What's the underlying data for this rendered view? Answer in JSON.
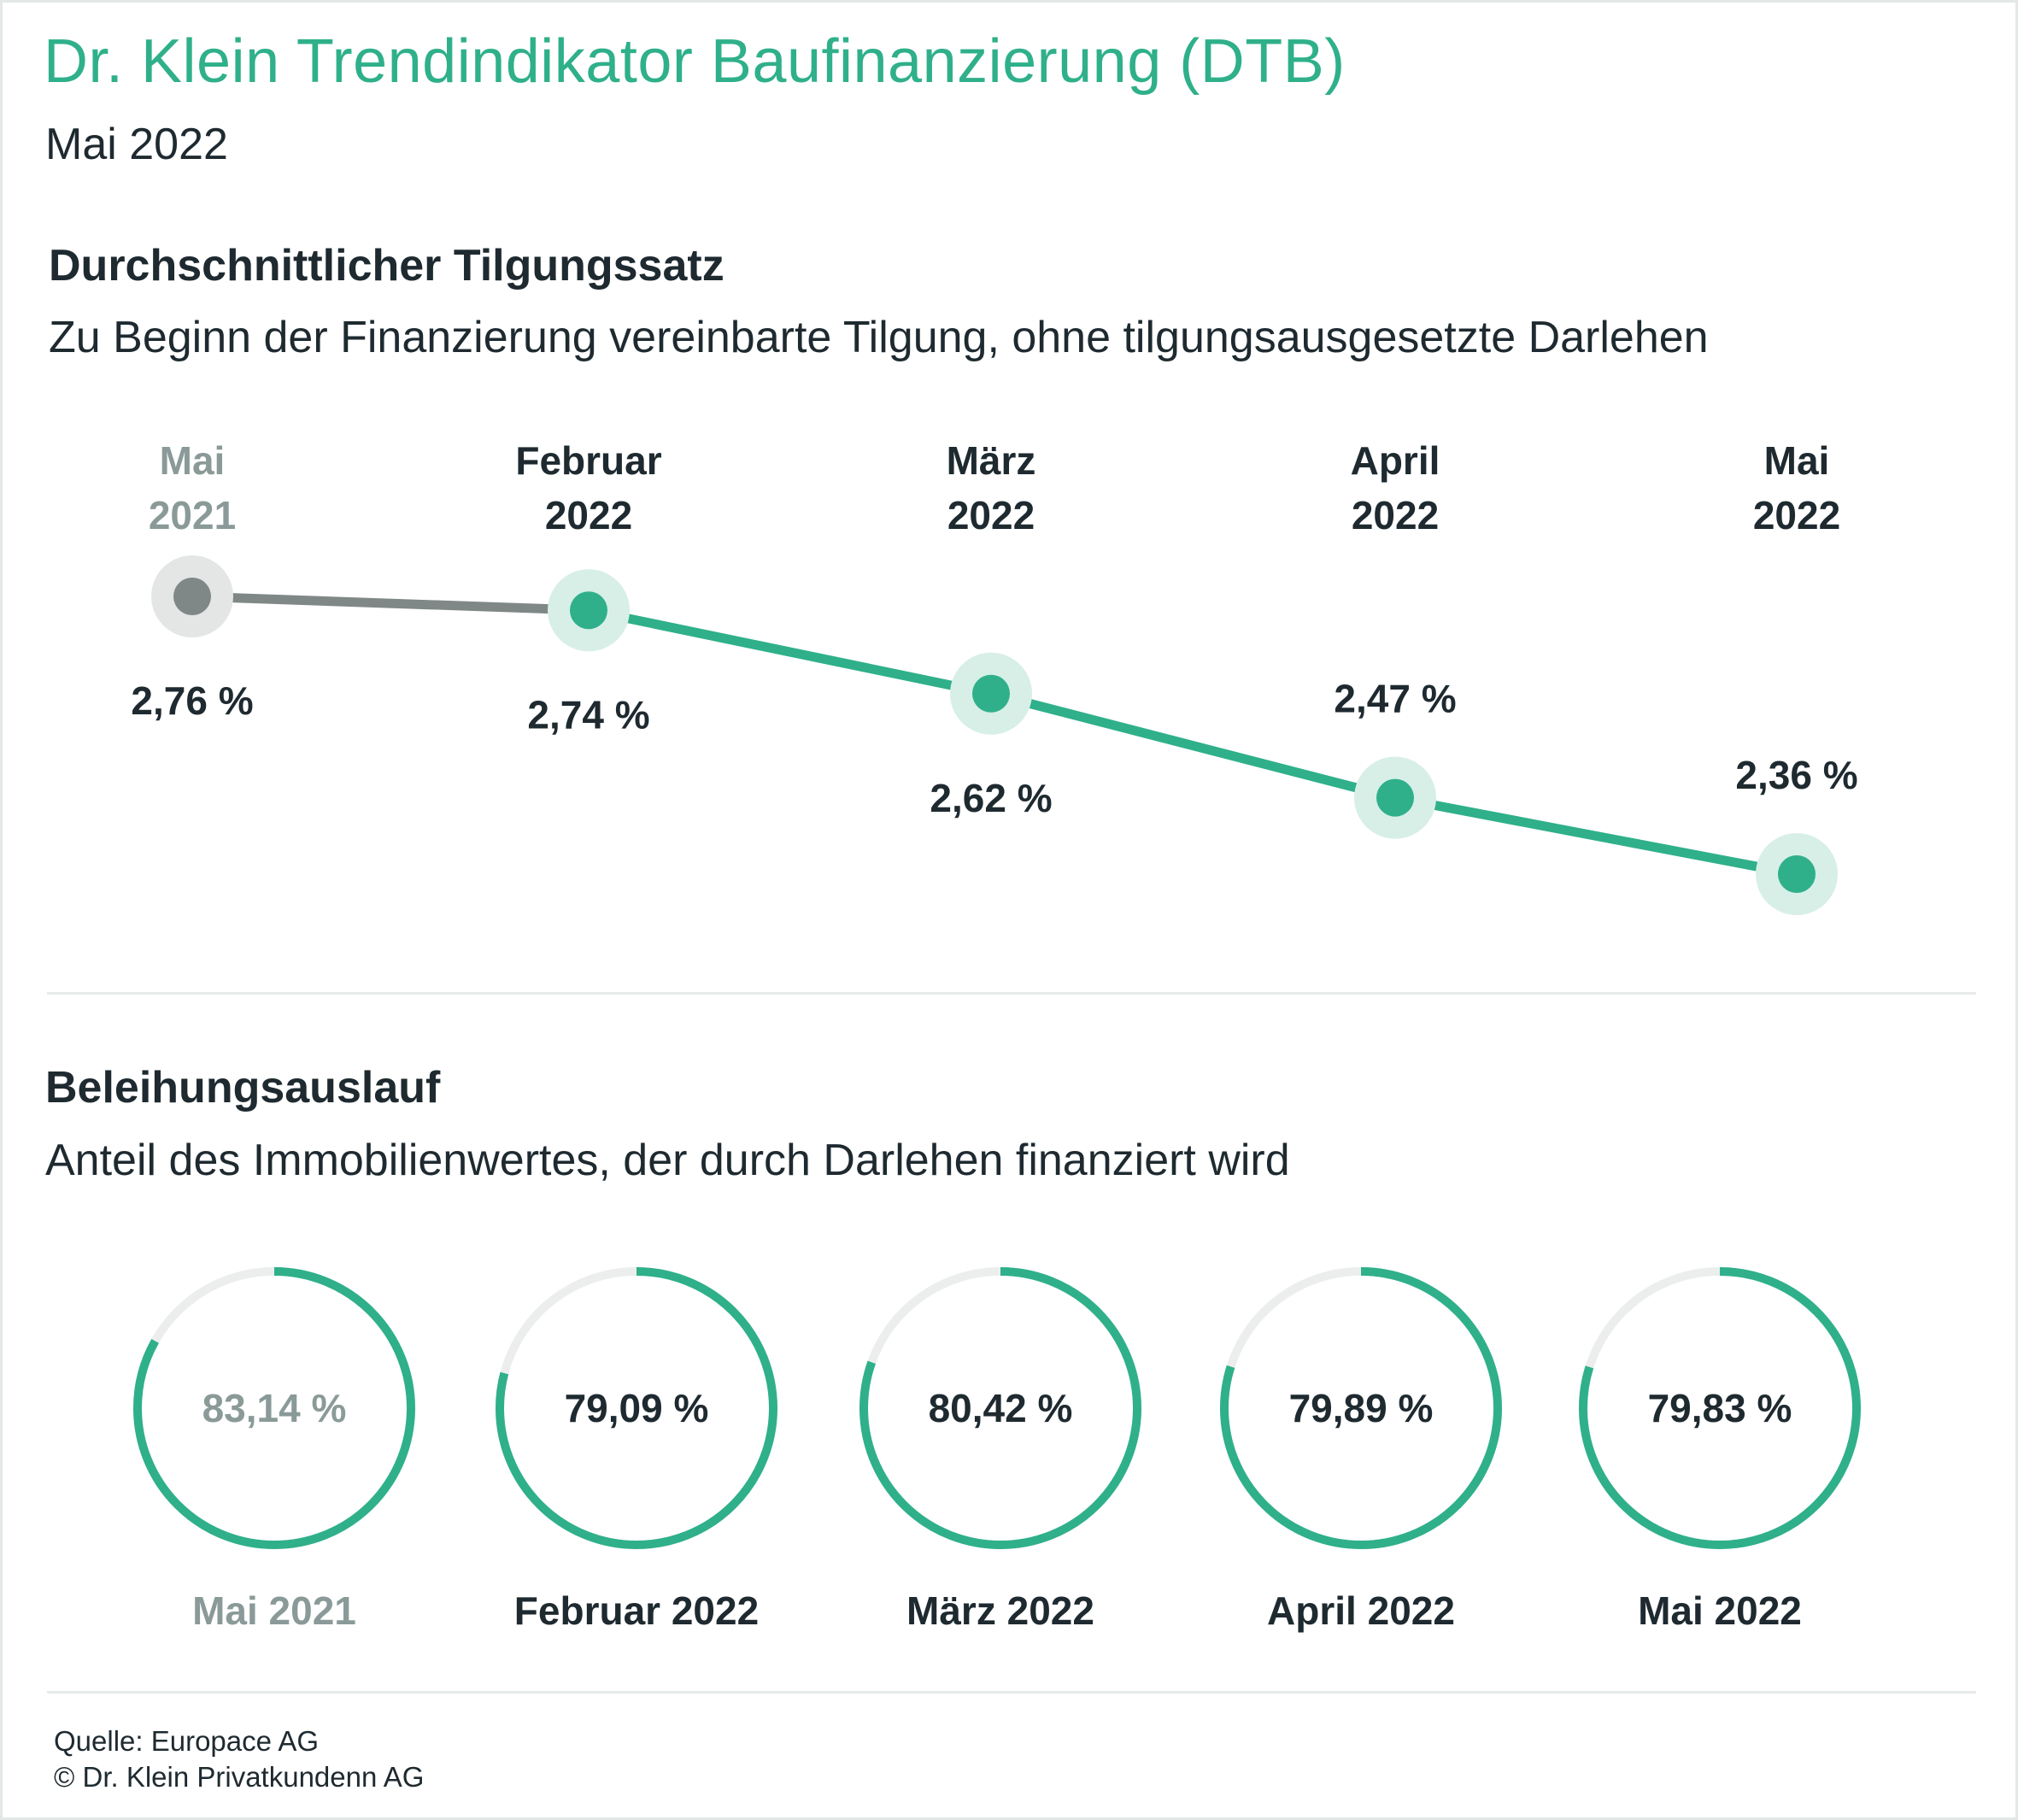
{
  "header": {
    "title": "Dr. Klein Trendindikator Baufinanzierung (DTB)",
    "subtitle": "Mai 2022"
  },
  "colors": {
    "accent": "#2fb08a",
    "accent_light": "#d7efe7",
    "muted": "#8a9a98",
    "muted_marker": "#7f8886",
    "muted_halo": "#e4e6e5",
    "ring_track": "#eceeed",
    "text": "#1e2a30"
  },
  "section1": {
    "heading": "Durchschnittlicher Tilgungssatz",
    "description": "Zu Beginn der Finanzierung vereinbarte Tilgung, ohne tilgungsausgesetzte Darlehen"
  },
  "section2": {
    "heading": "Beleihungsauslauf",
    "description": "Anteil des Immobilienwertes, der durch Darlehen finanziert wird"
  },
  "source": {
    "line1": "Quelle: Europace AG",
    "line2": "© Dr. Klein Privatkundenn AG"
  },
  "chart_data": [
    {
      "type": "line",
      "title": "Durchschnittlicher Tilgungssatz",
      "categories": [
        [
          "Mai",
          "2021"
        ],
        [
          "Februar",
          "2022"
        ],
        [
          "März",
          "2022"
        ],
        [
          "April",
          "2022"
        ],
        [
          "Mai",
          "2022"
        ]
      ],
      "values": [
        2.76,
        2.74,
        2.62,
        2.47,
        2.36
      ],
      "value_labels": [
        "2,76 %",
        "2,74 %",
        "2,62 %",
        "2,47 %",
        "2,36 %"
      ],
      "label_position": [
        "below",
        "below",
        "below",
        "above",
        "above"
      ],
      "highlighted_reference": 0,
      "grid": false
    },
    {
      "type": "pie",
      "subtype": "progress-rings",
      "title": "Beleihungsauslauf",
      "categories": [
        "Mai 2021",
        "Februar 2022",
        "März 2022",
        "April 2022",
        "Mai 2022"
      ],
      "values": [
        83.14,
        79.09,
        80.42,
        79.89,
        79.83
      ],
      "value_labels": [
        "83,14 %",
        "79,09 %",
        "80,42 %",
        "79,89 %",
        "79,83 %"
      ],
      "highlighted_reference": 0
    }
  ]
}
